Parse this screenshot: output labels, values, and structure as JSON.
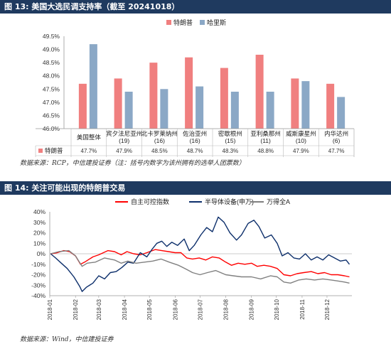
{
  "figure13": {
    "title": "图 13: 美国大选民调支持率（截至 20241018）",
    "source": "数据来源：RCP，中信建投证券（注：括号内数字为该州拥有的选举人团票数）"
  },
  "figure14": {
    "title": "图 14: 关注可能出现的特朗普交易",
    "source": "数据来源：Wind，中信建投证券"
  },
  "colors": {
    "trump": "#f07f7f",
    "harris": "#8ba8c6",
    "red_line": "#ff0000",
    "blue_line": "#0d2f6b",
    "gray_line": "#808080"
  },
  "chart_data": [
    {
      "type": "bar",
      "categories": [
        [
          "美国整体"
        ],
        [
          "宾夕法尼亚州",
          "(19)"
        ],
        [
          "北卡罗莱纳州",
          "(16)"
        ],
        [
          "佐治亚州",
          "(16)"
        ],
        [
          "密歇根州",
          "(15)"
        ],
        [
          "亚利桑那州",
          "(11)"
        ],
        [
          "威斯康星州",
          "(10)"
        ],
        [
          "内华达州",
          "(6)"
        ]
      ],
      "series": [
        {
          "name": "特朗普",
          "values": [
            47.7,
            47.9,
            48.5,
            48.7,
            48.3,
            48.8,
            47.9,
            47.7
          ],
          "labels": [
            "47.7%",
            "47.9%",
            "48.5%",
            "48.7%",
            "48.3%",
            "48.8%",
            "47.9%",
            "47.7%"
          ]
        },
        {
          "name": "哈里斯",
          "values": [
            49.2,
            47.4,
            47.5,
            47.6,
            47.4,
            47.4,
            47.8,
            47.2
          ],
          "labels": [
            "49.2%",
            "47.4%",
            "47.5%",
            "47.6%",
            "47.4%",
            "47.4%",
            "47.8%",
            "47.2%"
          ]
        }
      ],
      "ylim": [
        46.0,
        49.5
      ],
      "yticks": [
        "46.0%",
        "46.5%",
        "47.0%",
        "47.5%",
        "48.0%",
        "48.5%",
        "49.0%",
        "49.5%"
      ],
      "legend": "top-center",
      "grid": false
    },
    {
      "type": "line",
      "x_range": [
        "2018-01",
        "2018-12"
      ],
      "xticks": [
        "2018-01",
        "2018-02",
        "2018-03",
        "2018-04",
        "2018-05",
        "2018-06",
        "2018-07",
        "2018-08",
        "2018-09",
        "2018-10",
        "2018-11",
        "2018-12"
      ],
      "ylim": [
        -40,
        40
      ],
      "yticks": [
        "40%",
        "30%",
        "20%",
        "10%",
        "0%",
        "-10%",
        "-20%",
        "-30%",
        "-40%"
      ],
      "legend": "top-center",
      "grid": false,
      "series": [
        {
          "name": "自主可控指数",
          "points": [
            [
              "2018-01-02",
              0
            ],
            [
              "2018-01-10",
              1
            ],
            [
              "2018-01-18",
              3
            ],
            [
              "2018-01-25",
              2
            ],
            [
              "2018-02-01",
              -2
            ],
            [
              "2018-02-07",
              -10
            ],
            [
              "2018-02-12",
              -8
            ],
            [
              "2018-02-22",
              -3
            ],
            [
              "2018-03-01",
              -1
            ],
            [
              "2018-03-12",
              3
            ],
            [
              "2018-03-20",
              2
            ],
            [
              "2018-03-28",
              -1
            ],
            [
              "2018-04-04",
              2
            ],
            [
              "2018-04-12",
              0
            ],
            [
              "2018-04-20",
              -1
            ],
            [
              "2018-04-28",
              1
            ],
            [
              "2018-05-08",
              4
            ],
            [
              "2018-05-16",
              3
            ],
            [
              "2018-05-24",
              2
            ],
            [
              "2018-06-01",
              1
            ],
            [
              "2018-06-08",
              1
            ],
            [
              "2018-06-15",
              -4
            ],
            [
              "2018-06-22",
              -5
            ],
            [
              "2018-06-30",
              -4
            ],
            [
              "2018-07-08",
              -6
            ],
            [
              "2018-07-16",
              -3
            ],
            [
              "2018-07-24",
              -4
            ],
            [
              "2018-08-01",
              -8
            ],
            [
              "2018-08-08",
              -11
            ],
            [
              "2018-08-16",
              -9
            ],
            [
              "2018-08-24",
              -10
            ],
            [
              "2018-09-01",
              -9
            ],
            [
              "2018-09-08",
              -12
            ],
            [
              "2018-09-16",
              -11
            ],
            [
              "2018-09-24",
              -12
            ],
            [
              "2018-10-02",
              -14
            ],
            [
              "2018-10-10",
              -20
            ],
            [
              "2018-10-18",
              -21
            ],
            [
              "2018-10-26",
              -19
            ],
            [
              "2018-11-03",
              -18
            ],
            [
              "2018-11-12",
              -17
            ],
            [
              "2018-11-20",
              -19
            ],
            [
              "2018-11-28",
              -18
            ],
            [
              "2018-12-06",
              -20
            ],
            [
              "2018-12-14",
              -20
            ],
            [
              "2018-12-22",
              -21
            ],
            [
              "2018-12-28",
              -22
            ]
          ]
        },
        {
          "name": "半导体设备(申万)",
          "points": [
            [
              "2018-01-02",
              0
            ],
            [
              "2018-01-08",
              -4
            ],
            [
              "2018-01-15",
              -9
            ],
            [
              "2018-01-22",
              -14
            ],
            [
              "2018-01-30",
              -22
            ],
            [
              "2018-02-06",
              -31
            ],
            [
              "2018-02-09",
              -36
            ],
            [
              "2018-02-14",
              -32
            ],
            [
              "2018-02-22",
              -28
            ],
            [
              "2018-03-01",
              -21
            ],
            [
              "2018-03-08",
              -24
            ],
            [
              "2018-03-15",
              -18
            ],
            [
              "2018-03-22",
              -17
            ],
            [
              "2018-03-29",
              -13
            ],
            [
              "2018-04-05",
              -8
            ],
            [
              "2018-04-12",
              -9
            ],
            [
              "2018-04-20",
              1
            ],
            [
              "2018-04-28",
              -3
            ],
            [
              "2018-05-04",
              4
            ],
            [
              "2018-05-10",
              10
            ],
            [
              "2018-05-16",
              12
            ],
            [
              "2018-05-22",
              7
            ],
            [
              "2018-05-28",
              11
            ],
            [
              "2018-06-04",
              8
            ],
            [
              "2018-06-12",
              14
            ],
            [
              "2018-06-18",
              3
            ],
            [
              "2018-06-24",
              8
            ],
            [
              "2018-07-02",
              18
            ],
            [
              "2018-07-09",
              25
            ],
            [
              "2018-07-16",
              21
            ],
            [
              "2018-07-23",
              35
            ],
            [
              "2018-07-30",
              30
            ],
            [
              "2018-08-06",
              20
            ],
            [
              "2018-08-14",
              13
            ],
            [
              "2018-08-20",
              18
            ],
            [
              "2018-08-28",
              29
            ],
            [
              "2018-09-04",
              32
            ],
            [
              "2018-09-10",
              26
            ],
            [
              "2018-09-17",
              15
            ],
            [
              "2018-09-25",
              18
            ],
            [
              "2018-10-02",
              10
            ],
            [
              "2018-10-08",
              -2
            ],
            [
              "2018-10-15",
              1
            ],
            [
              "2018-10-22",
              -4
            ],
            [
              "2018-10-29",
              -5
            ],
            [
              "2018-11-05",
              0
            ],
            [
              "2018-11-12",
              -6
            ],
            [
              "2018-11-19",
              -3
            ],
            [
              "2018-11-26",
              -6
            ],
            [
              "2018-12-03",
              -1
            ],
            [
              "2018-12-10",
              -4
            ],
            [
              "2018-12-17",
              -7
            ],
            [
              "2018-12-24",
              -6
            ],
            [
              "2018-12-28",
              -10
            ]
          ]
        },
        {
          "name": "万得全A",
          "points": [
            [
              "2018-01-02",
              0
            ],
            [
              "2018-01-12",
              2
            ],
            [
              "2018-01-24",
              3
            ],
            [
              "2018-02-01",
              -2
            ],
            [
              "2018-02-09",
              -12
            ],
            [
              "2018-02-15",
              -9
            ],
            [
              "2018-02-25",
              -8
            ],
            [
              "2018-03-08",
              -4
            ],
            [
              "2018-03-20",
              -6
            ],
            [
              "2018-03-28",
              -9
            ],
            [
              "2018-04-05",
              -7
            ],
            [
              "2018-04-15",
              -9
            ],
            [
              "2018-04-25",
              -8
            ],
            [
              "2018-05-05",
              -7
            ],
            [
              "2018-05-15",
              -5
            ],
            [
              "2018-05-25",
              -8
            ],
            [
              "2018-06-05",
              -11
            ],
            [
              "2018-06-15",
              -15
            ],
            [
              "2018-06-22",
              -18
            ],
            [
              "2018-07-01",
              -20
            ],
            [
              "2018-07-10",
              -18
            ],
            [
              "2018-07-20",
              -16
            ],
            [
              "2018-08-01",
              -20
            ],
            [
              "2018-08-10",
              -21
            ],
            [
              "2018-08-20",
              -22
            ],
            [
              "2018-09-01",
              -22
            ],
            [
              "2018-09-12",
              -24
            ],
            [
              "2018-09-24",
              -21
            ],
            [
              "2018-10-02",
              -22
            ],
            [
              "2018-10-10",
              -27
            ],
            [
              "2018-10-18",
              -28
            ],
            [
              "2018-10-28",
              -25
            ],
            [
              "2018-11-06",
              -24
            ],
            [
              "2018-11-16",
              -25
            ],
            [
              "2018-11-26",
              -24
            ],
            [
              "2018-12-06",
              -25
            ],
            [
              "2018-12-14",
              -26
            ],
            [
              "2018-12-22",
              -27
            ],
            [
              "2018-12-28",
              -28
            ]
          ]
        }
      ]
    }
  ]
}
